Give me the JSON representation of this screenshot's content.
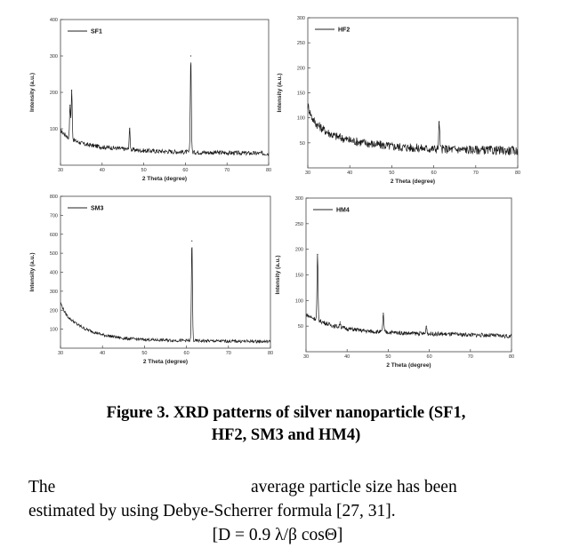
{
  "chart_data": [
    {
      "type": "line",
      "legend": "SF1",
      "xlabel": "2 Theta (degree)",
      "ylabel": "Intensity (a.u.)",
      "xlim": [
        30,
        80
      ],
      "ylim": [
        0,
        400
      ],
      "xticks": [
        "30",
        "40",
        "50",
        "60",
        "70",
        "80"
      ],
      "yticks": [
        "100",
        "200",
        "300",
        "400"
      ],
      "baseline": [
        [
          30,
          95
        ],
        [
          31,
          85
        ],
        [
          32,
          75
        ],
        [
          34,
          65
        ],
        [
          36,
          57
        ],
        [
          40,
          50
        ],
        [
          45,
          45
        ],
        [
          50,
          40
        ],
        [
          55,
          38
        ],
        [
          60,
          36
        ],
        [
          65,
          35
        ],
        [
          70,
          34
        ],
        [
          75,
          33
        ],
        [
          80,
          32
        ]
      ],
      "peaks": [
        {
          "x": 32.3,
          "y": 165
        },
        {
          "x": 32.7,
          "y": 205
        },
        {
          "x": 46.6,
          "y": 100
        },
        {
          "x": 61.3,
          "y": 300
        }
      ],
      "noise": 6
    },
    {
      "type": "line",
      "legend": "HF2",
      "xlabel": "2 Theta (degree)",
      "ylabel": "Intensity (a.u.)",
      "xlim": [
        30,
        80
      ],
      "ylim": [
        0,
        300
      ],
      "xticks": [
        "30",
        "40",
        "50",
        "60",
        "70",
        "80"
      ],
      "yticks": [
        "50",
        "100",
        "150",
        "200",
        "250",
        "300"
      ],
      "baseline": [
        [
          30,
          125
        ],
        [
          31,
          100
        ],
        [
          32,
          88
        ],
        [
          34,
          75
        ],
        [
          36,
          65
        ],
        [
          40,
          55
        ],
        [
          45,
          48
        ],
        [
          50,
          43
        ],
        [
          55,
          40
        ],
        [
          60,
          38
        ],
        [
          65,
          37
        ],
        [
          70,
          36
        ],
        [
          75,
          35
        ],
        [
          80,
          34
        ]
      ],
      "peaks": [
        {
          "x": 61.3,
          "y": 92
        }
      ],
      "noise": 9
    },
    {
      "type": "line",
      "legend": "SM3",
      "xlabel": "2 Theta (degree)",
      "ylabel": "Intensity (a.u.)",
      "xlim": [
        30,
        80
      ],
      "ylim": [
        0,
        800
      ],
      "xticks": [
        "30",
        "40",
        "50",
        "60",
        "70",
        "80"
      ],
      "yticks": [
        "100",
        "200",
        "300",
        "400",
        "500",
        "600",
        "700",
        "800"
      ],
      "baseline": [
        [
          30,
          240
        ],
        [
          31,
          190
        ],
        [
          32,
          160
        ],
        [
          34,
          125
        ],
        [
          36,
          100
        ],
        [
          40,
          70
        ],
        [
          45,
          52
        ],
        [
          50,
          45
        ],
        [
          55,
          42
        ],
        [
          60,
          40
        ],
        [
          65,
          38
        ],
        [
          70,
          37
        ],
        [
          75,
          36
        ],
        [
          80,
          35
        ]
      ],
      "peaks": [
        {
          "x": 61.3,
          "y": 565
        }
      ],
      "noise": 8
    },
    {
      "type": "line",
      "legend": "HM4",
      "xlabel": "2 Theta (degree)",
      "ylabel": "Intensity (a.u.)",
      "xlim": [
        30,
        80
      ],
      "ylim": [
        0,
        300
      ],
      "xticks": [
        "30",
        "40",
        "50",
        "60",
        "70",
        "80"
      ],
      "yticks": [
        "50",
        "100",
        "150",
        "200",
        "250",
        "300"
      ],
      "baseline": [
        [
          30,
          73
        ],
        [
          31,
          68
        ],
        [
          32,
          65
        ],
        [
          34,
          58
        ],
        [
          36,
          52
        ],
        [
          40,
          45
        ],
        [
          45,
          40
        ],
        [
          50,
          38
        ],
        [
          55,
          36
        ],
        [
          60,
          35
        ],
        [
          65,
          34
        ],
        [
          70,
          33
        ],
        [
          75,
          32
        ],
        [
          80,
          30
        ]
      ],
      "peaks": [
        {
          "x": 32.8,
          "y": 190
        },
        {
          "x": 38.3,
          "y": 58
        },
        {
          "x": 48.8,
          "y": 75
        },
        {
          "x": 59.3,
          "y": 50
        }
      ],
      "noise": 4
    }
  ],
  "caption": {
    "line1": "Figure 3. XRD patterns of silver nanoparticle (SF1,",
    "line2": "HF2, SM3 and HM4)"
  },
  "paragraph": {
    "line1_start": "The",
    "line1_end": "average particle size has been",
    "line2": "estimated by using Debye-Scherrer formula [27, 31].",
    "line3": "[D = 0.9 λ/β cosΘ]"
  }
}
